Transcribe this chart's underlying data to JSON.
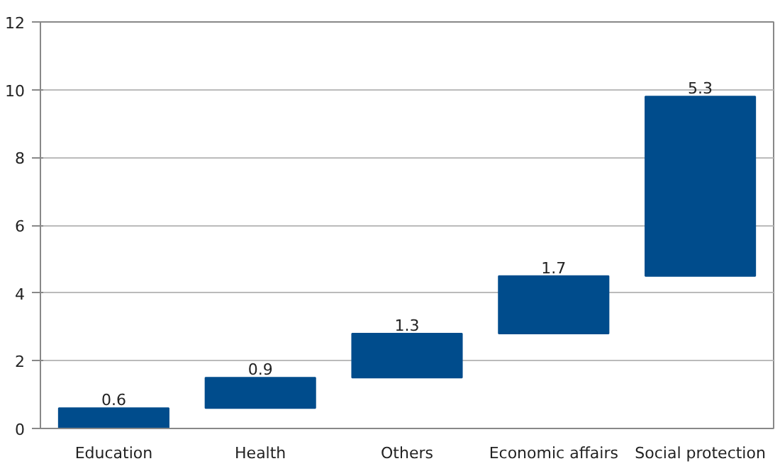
{
  "chart_data": {
    "type": "bar",
    "categories": [
      "Education",
      "Health",
      "Others",
      "Economic affairs",
      "Social protection"
    ],
    "values": [
      0.6,
      0.9,
      1.3,
      1.7,
      5.3
    ],
    "base": [
      0,
      0.6,
      1.5,
      2.8,
      4.5
    ],
    "color": "#004c8c",
    "data_labels": true,
    "grid": "y",
    "ylim": [
      0,
      12
    ],
    "yticks": [
      0,
      2,
      4,
      6,
      8,
      10,
      12
    ]
  }
}
